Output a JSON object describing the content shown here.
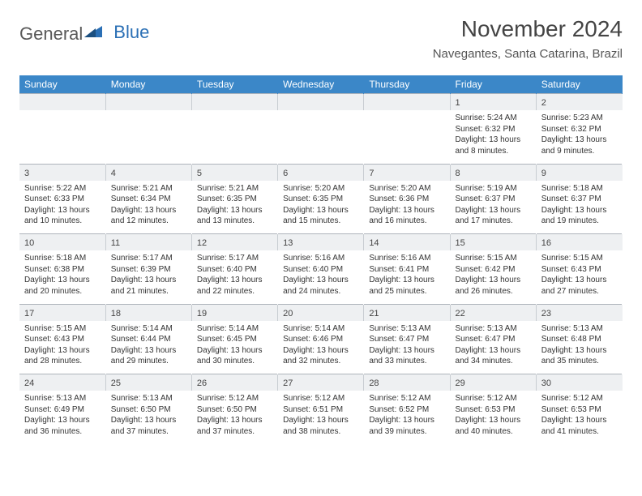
{
  "logo": {
    "part1": "General",
    "part2": "Blue"
  },
  "title": "November 2024",
  "location": "Navegantes, Santa Catarina, Brazil",
  "colors": {
    "header_bg": "#3b87c8",
    "header_text": "#ffffff",
    "daynum_bg": "#eef0f2",
    "border": "#aeb4bb",
    "logo_blue": "#2a6fb5",
    "text": "#333333"
  },
  "weekdays": [
    "Sunday",
    "Monday",
    "Tuesday",
    "Wednesday",
    "Thursday",
    "Friday",
    "Saturday"
  ],
  "weeks": [
    {
      "nums": [
        "",
        "",
        "",
        "",
        "",
        "1",
        "2"
      ],
      "details": [
        "",
        "",
        "",
        "",
        "",
        "Sunrise: 5:24 AM\nSunset: 6:32 PM\nDaylight: 13 hours and 8 minutes.",
        "Sunrise: 5:23 AM\nSunset: 6:32 PM\nDaylight: 13 hours and 9 minutes."
      ]
    },
    {
      "nums": [
        "3",
        "4",
        "5",
        "6",
        "7",
        "8",
        "9"
      ],
      "details": [
        "Sunrise: 5:22 AM\nSunset: 6:33 PM\nDaylight: 13 hours and 10 minutes.",
        "Sunrise: 5:21 AM\nSunset: 6:34 PM\nDaylight: 13 hours and 12 minutes.",
        "Sunrise: 5:21 AM\nSunset: 6:35 PM\nDaylight: 13 hours and 13 minutes.",
        "Sunrise: 5:20 AM\nSunset: 6:35 PM\nDaylight: 13 hours and 15 minutes.",
        "Sunrise: 5:20 AM\nSunset: 6:36 PM\nDaylight: 13 hours and 16 minutes.",
        "Sunrise: 5:19 AM\nSunset: 6:37 PM\nDaylight: 13 hours and 17 minutes.",
        "Sunrise: 5:18 AM\nSunset: 6:37 PM\nDaylight: 13 hours and 19 minutes."
      ]
    },
    {
      "nums": [
        "10",
        "11",
        "12",
        "13",
        "14",
        "15",
        "16"
      ],
      "details": [
        "Sunrise: 5:18 AM\nSunset: 6:38 PM\nDaylight: 13 hours and 20 minutes.",
        "Sunrise: 5:17 AM\nSunset: 6:39 PM\nDaylight: 13 hours and 21 minutes.",
        "Sunrise: 5:17 AM\nSunset: 6:40 PM\nDaylight: 13 hours and 22 minutes.",
        "Sunrise: 5:16 AM\nSunset: 6:40 PM\nDaylight: 13 hours and 24 minutes.",
        "Sunrise: 5:16 AM\nSunset: 6:41 PM\nDaylight: 13 hours and 25 minutes.",
        "Sunrise: 5:15 AM\nSunset: 6:42 PM\nDaylight: 13 hours and 26 minutes.",
        "Sunrise: 5:15 AM\nSunset: 6:43 PM\nDaylight: 13 hours and 27 minutes."
      ]
    },
    {
      "nums": [
        "17",
        "18",
        "19",
        "20",
        "21",
        "22",
        "23"
      ],
      "details": [
        "Sunrise: 5:15 AM\nSunset: 6:43 PM\nDaylight: 13 hours and 28 minutes.",
        "Sunrise: 5:14 AM\nSunset: 6:44 PM\nDaylight: 13 hours and 29 minutes.",
        "Sunrise: 5:14 AM\nSunset: 6:45 PM\nDaylight: 13 hours and 30 minutes.",
        "Sunrise: 5:14 AM\nSunset: 6:46 PM\nDaylight: 13 hours and 32 minutes.",
        "Sunrise: 5:13 AM\nSunset: 6:47 PM\nDaylight: 13 hours and 33 minutes.",
        "Sunrise: 5:13 AM\nSunset: 6:47 PM\nDaylight: 13 hours and 34 minutes.",
        "Sunrise: 5:13 AM\nSunset: 6:48 PM\nDaylight: 13 hours and 35 minutes."
      ]
    },
    {
      "nums": [
        "24",
        "25",
        "26",
        "27",
        "28",
        "29",
        "30"
      ],
      "details": [
        "Sunrise: 5:13 AM\nSunset: 6:49 PM\nDaylight: 13 hours and 36 minutes.",
        "Sunrise: 5:13 AM\nSunset: 6:50 PM\nDaylight: 13 hours and 37 minutes.",
        "Sunrise: 5:12 AM\nSunset: 6:50 PM\nDaylight: 13 hours and 37 minutes.",
        "Sunrise: 5:12 AM\nSunset: 6:51 PM\nDaylight: 13 hours and 38 minutes.",
        "Sunrise: 5:12 AM\nSunset: 6:52 PM\nDaylight: 13 hours and 39 minutes.",
        "Sunrise: 5:12 AM\nSunset: 6:53 PM\nDaylight: 13 hours and 40 minutes.",
        "Sunrise: 5:12 AM\nSunset: 6:53 PM\nDaylight: 13 hours and 41 minutes."
      ]
    }
  ]
}
